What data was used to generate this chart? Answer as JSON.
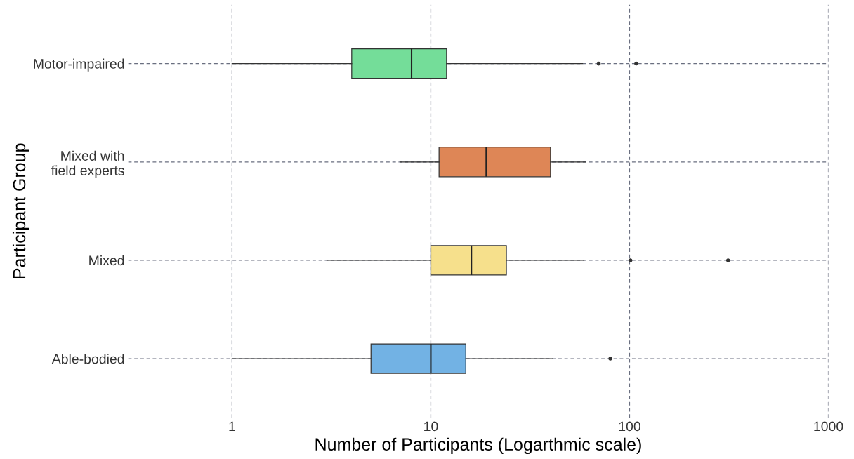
{
  "chart_data": {
    "type": "box",
    "orientation": "horizontal",
    "log": "x",
    "xlabel": "Number of Participants (Logarthmic scale)",
    "ylabel": "Participant Group",
    "categories": [
      "Motor-impaired",
      "Mixed with\nfield experts",
      "Mixed",
      "Able-bodied"
    ],
    "colors": [
      "#74dd99",
      "#de8656",
      "#f6e08c",
      "#72b2e4"
    ],
    "boxes": [
      {
        "low": 1,
        "q1": 4,
        "median": 8,
        "q3": 12,
        "high": 58,
        "outliers": [
          70,
          108
        ]
      },
      {
        "low": 7,
        "q1": 11,
        "median": 19,
        "q3": 40,
        "high": 60
      },
      {
        "low": 3,
        "q1": 10,
        "median": 16,
        "q3": 24,
        "high": 59,
        "outliers": [
          101,
          313
        ]
      },
      {
        "low": 1,
        "q1": 5,
        "median": 10,
        "q3": 15,
        "high": 41,
        "outliers": [
          80
        ]
      }
    ],
    "xlim": [
      0.3,
      1000
    ],
    "xticks": [
      1,
      10,
      100,
      1000
    ],
    "grid": true
  }
}
